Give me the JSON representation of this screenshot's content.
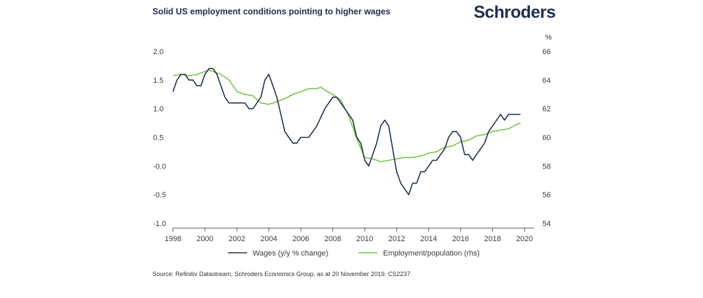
{
  "header": {
    "title": "Solid US employment conditions pointing to higher wages",
    "logo_text": "Schroders"
  },
  "footer": {
    "source": "Source: Refinitiv Datastream, Schroders Economics Group, as at 20 November 2019. CS2237"
  },
  "chart_data": {
    "type": "line",
    "title": "Solid US employment conditions pointing to higher wages",
    "x_ticks": [
      "1998",
      "2000",
      "2002",
      "2004",
      "2006",
      "2008",
      "2010",
      "2012",
      "2014",
      "2016",
      "2018",
      "2020"
    ],
    "xlim": [
      1998,
      2020.6
    ],
    "y_left": {
      "ticks": [
        "2.0",
        "1.5",
        "1.0",
        "0.5",
        "-0.0",
        "-0.5",
        "-1.0"
      ],
      "lim": [
        -1.0,
        2.0
      ]
    },
    "y_right": {
      "unit": "%",
      "ticks": [
        "66",
        "64",
        "62",
        "60",
        "58",
        "56",
        "54"
      ],
      "lim": [
        54,
        66
      ]
    },
    "grid": false,
    "legend_position": "bottom",
    "colors": {
      "wages": "#1f2d4d",
      "employment": "#78c24a"
    },
    "series": [
      {
        "name": "Wages (y/y % change)",
        "axis": "left",
        "points": [
          [
            1998.0,
            1.3
          ],
          [
            1998.25,
            1.5
          ],
          [
            1998.5,
            1.6
          ],
          [
            1998.75,
            1.6
          ],
          [
            1999.0,
            1.5
          ],
          [
            1999.25,
            1.5
          ],
          [
            1999.5,
            1.4
          ],
          [
            1999.75,
            1.4
          ],
          [
            2000.0,
            1.6
          ],
          [
            2000.25,
            1.7
          ],
          [
            2000.5,
            1.7
          ],
          [
            2000.75,
            1.6
          ],
          [
            2001.0,
            1.4
          ],
          [
            2001.25,
            1.2
          ],
          [
            2001.5,
            1.1
          ],
          [
            2001.75,
            1.1
          ],
          [
            2002.0,
            1.1
          ],
          [
            2002.25,
            1.1
          ],
          [
            2002.5,
            1.1
          ],
          [
            2002.75,
            1.0
          ],
          [
            2003.0,
            1.0
          ],
          [
            2003.25,
            1.1
          ],
          [
            2003.5,
            1.2
          ],
          [
            2003.75,
            1.5
          ],
          [
            2004.0,
            1.6
          ],
          [
            2004.25,
            1.4
          ],
          [
            2004.5,
            1.2
          ],
          [
            2004.75,
            0.9
          ],
          [
            2005.0,
            0.6
          ],
          [
            2005.25,
            0.5
          ],
          [
            2005.5,
            0.4
          ],
          [
            2005.75,
            0.4
          ],
          [
            2006.0,
            0.5
          ],
          [
            2006.5,
            0.5
          ],
          [
            2007.0,
            0.7
          ],
          [
            2007.5,
            1.0
          ],
          [
            2007.75,
            1.1
          ],
          [
            2008.0,
            1.2
          ],
          [
            2008.25,
            1.2
          ],
          [
            2008.5,
            1.1
          ],
          [
            2008.75,
            1.0
          ],
          [
            2009.25,
            0.8
          ],
          [
            2009.5,
            0.5
          ],
          [
            2009.75,
            0.4
          ],
          [
            2010.0,
            0.1
          ],
          [
            2010.25,
            0.0
          ],
          [
            2010.5,
            0.2
          ],
          [
            2010.75,
            0.4
          ],
          [
            2011.0,
            0.7
          ],
          [
            2011.25,
            0.8
          ],
          [
            2011.5,
            0.7
          ],
          [
            2011.75,
            0.3
          ],
          [
            2012.0,
            -0.1
          ],
          [
            2012.25,
            -0.3
          ],
          [
            2012.5,
            -0.4
          ],
          [
            2012.75,
            -0.5
          ],
          [
            2013.0,
            -0.3
          ],
          [
            2013.25,
            -0.3
          ],
          [
            2013.5,
            -0.1
          ],
          [
            2013.75,
            -0.1
          ],
          [
            2014.0,
            0.0
          ],
          [
            2014.25,
            0.1
          ],
          [
            2014.5,
            0.1
          ],
          [
            2014.75,
            0.2
          ],
          [
            2015.0,
            0.3
          ],
          [
            2015.25,
            0.5
          ],
          [
            2015.5,
            0.6
          ],
          [
            2015.75,
            0.6
          ],
          [
            2016.0,
            0.5
          ],
          [
            2016.25,
            0.2
          ],
          [
            2016.5,
            0.2
          ],
          [
            2016.75,
            0.1
          ],
          [
            2017.0,
            0.2
          ],
          [
            2017.25,
            0.3
          ],
          [
            2017.5,
            0.4
          ],
          [
            2017.75,
            0.6
          ],
          [
            2018.0,
            0.7
          ],
          [
            2018.25,
            0.8
          ],
          [
            2018.5,
            0.9
          ],
          [
            2018.75,
            0.8
          ],
          [
            2019.0,
            0.9
          ],
          [
            2019.25,
            0.9
          ],
          [
            2019.5,
            0.9
          ],
          [
            2019.75,
            0.9
          ]
        ]
      },
      {
        "name": "Employment/population (rhs)",
        "axis": "right",
        "points": [
          [
            1998.0,
            64.3
          ],
          [
            1998.5,
            64.4
          ],
          [
            1999.0,
            64.3
          ],
          [
            1999.5,
            64.4
          ],
          [
            2000.0,
            64.6
          ],
          [
            2000.25,
            64.7
          ],
          [
            2000.75,
            64.5
          ],
          [
            2001.0,
            64.4
          ],
          [
            2001.5,
            64.0
          ],
          [
            2002.0,
            63.2
          ],
          [
            2002.5,
            63.0
          ],
          [
            2003.0,
            62.9
          ],
          [
            2003.5,
            62.4
          ],
          [
            2004.0,
            62.3
          ],
          [
            2004.5,
            62.5
          ],
          [
            2005.0,
            62.7
          ],
          [
            2005.5,
            63.0
          ],
          [
            2006.0,
            63.2
          ],
          [
            2006.5,
            63.4
          ],
          [
            2007.0,
            63.4
          ],
          [
            2007.25,
            63.5
          ],
          [
            2007.5,
            63.3
          ],
          [
            2008.0,
            63.0
          ],
          [
            2008.5,
            62.6
          ],
          [
            2009.0,
            61.5
          ],
          [
            2009.5,
            59.9
          ],
          [
            2010.0,
            58.6
          ],
          [
            2010.5,
            58.5
          ],
          [
            2011.0,
            58.3
          ],
          [
            2011.5,
            58.4
          ],
          [
            2012.0,
            58.5
          ],
          [
            2012.5,
            58.6
          ],
          [
            2013.0,
            58.6
          ],
          [
            2013.5,
            58.7
          ],
          [
            2014.0,
            58.9
          ],
          [
            2014.5,
            59.0
          ],
          [
            2015.0,
            59.3
          ],
          [
            2015.5,
            59.4
          ],
          [
            2016.0,
            59.7
          ],
          [
            2016.5,
            59.8
          ],
          [
            2017.0,
            60.1
          ],
          [
            2017.5,
            60.2
          ],
          [
            2018.0,
            60.4
          ],
          [
            2018.5,
            60.5
          ],
          [
            2019.0,
            60.6
          ],
          [
            2019.5,
            60.9
          ],
          [
            2019.75,
            61.0
          ]
        ]
      }
    ]
  }
}
